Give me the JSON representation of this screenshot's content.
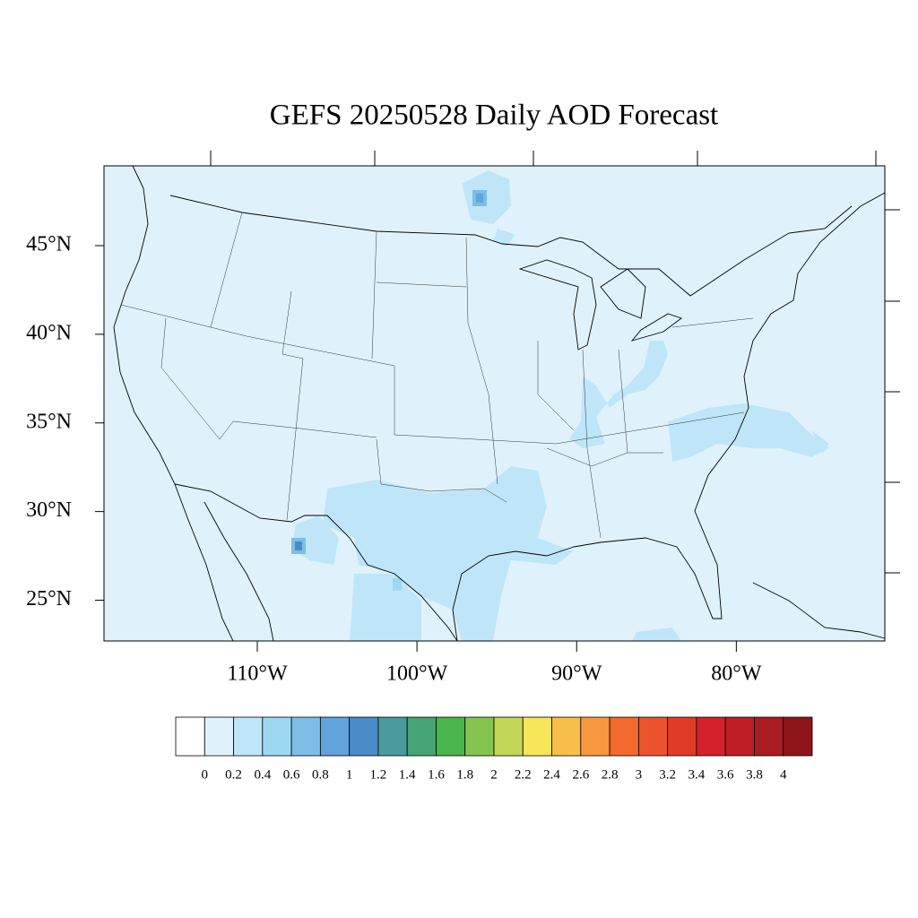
{
  "title": "GEFS 20250528 Daily AOD Forecast",
  "map": {
    "xlim": [
      -119.6,
      -70.7
    ],
    "ylim": [
      22.7,
      49.5
    ],
    "xticks": [
      {
        "value": -110,
        "label": "110°W"
      },
      {
        "value": -100,
        "label": "100°W"
      },
      {
        "value": -90,
        "label": "90°W"
      },
      {
        "value": -80,
        "label": "80°W"
      }
    ],
    "yticks": [
      {
        "value": 45,
        "label": "45°N"
      },
      {
        "value": 40,
        "label": "40°N"
      },
      {
        "value": 35,
        "label": "35°N"
      },
      {
        "value": 30,
        "label": "30°N"
      },
      {
        "value": 25,
        "label": "25°N"
      }
    ]
  },
  "colorbar": {
    "colors": [
      "#ffffff",
      "#dff2fb",
      "#bfe6f8",
      "#9dd8f3",
      "#7dbde6",
      "#62a3dc",
      "#4a8cca",
      "#4a9a9e",
      "#45a574",
      "#4ab54a",
      "#84c44f",
      "#c2d658",
      "#f7e659",
      "#f7bf4a",
      "#f79740",
      "#f46a2e",
      "#ea532b",
      "#e03b27",
      "#d52129",
      "#bf1e25",
      "#a81c22",
      "#8e1519"
    ],
    "levels": [
      0,
      0.2,
      0.4,
      0.6,
      0.8,
      1,
      1.2,
      1.4,
      1.6,
      1.8,
      2,
      2.2,
      2.4,
      2.6,
      2.8,
      3,
      3.2,
      3.4,
      3.6,
      3.8,
      4
    ]
  }
}
